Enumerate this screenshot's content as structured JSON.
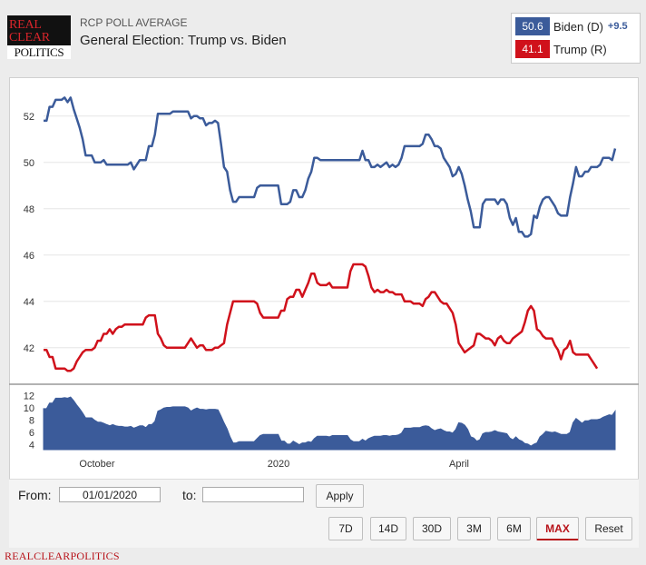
{
  "header": {
    "logo_lines": [
      "REAL",
      "CLEAR",
      "POLITICS"
    ],
    "subtitle": "RCP POLL AVERAGE",
    "title": "General Election: Trump vs. Biden"
  },
  "legend": [
    {
      "value": "50.6",
      "name": "Biden (D)",
      "spread": "+9.5",
      "color": "#3b5b9a"
    },
    {
      "value": "41.1",
      "name": "Trump (R)",
      "spread": "",
      "color": "#d0111b"
    }
  ],
  "chart_data": {
    "type": "line",
    "title": "General Election: Trump vs. Biden",
    "ylim": [
      40.5,
      53.6
    ],
    "yticks": [
      42,
      44,
      46,
      48,
      50,
      52
    ],
    "xticks": [
      "October",
      "2020",
      "April"
    ],
    "series": [
      {
        "name": "Biden (D)",
        "color": "#3b5b9a",
        "values": [
          51.8,
          51.8,
          52.4,
          52.4,
          52.7,
          52.7,
          52.7,
          52.8,
          52.6,
          52.8,
          52.3,
          51.9,
          51.5,
          51.0,
          50.3,
          50.3,
          50.3,
          50.0,
          50.0,
          50.0,
          50.1,
          49.9,
          49.9,
          49.9,
          49.9,
          49.9,
          49.9,
          49.9,
          49.9,
          50.0,
          49.7,
          49.9,
          50.1,
          50.1,
          50.1,
          50.7,
          50.7,
          51.2,
          52.1,
          52.1,
          52.1,
          52.1,
          52.1,
          52.2,
          52.2,
          52.2,
          52.2,
          52.2,
          52.2,
          51.9,
          52.0,
          52.0,
          51.9,
          51.9,
          51.6,
          51.7,
          51.7,
          51.8,
          51.7,
          50.8,
          49.8,
          49.6,
          48.8,
          48.3,
          48.3,
          48.5,
          48.5,
          48.5,
          48.5,
          48.5,
          48.5,
          48.9,
          49.0,
          49.0,
          49.0,
          49.0,
          49.0,
          49.0,
          49.0,
          48.2,
          48.2,
          48.2,
          48.3,
          48.8,
          48.8,
          48.5,
          48.5,
          48.8,
          49.3,
          49.6,
          50.2,
          50.2,
          50.1,
          50.1,
          50.1,
          50.1,
          50.1,
          50.1,
          50.1,
          50.1,
          50.1,
          50.1,
          50.1,
          50.1,
          50.1,
          50.1,
          50.5,
          50.1,
          50.1,
          49.8,
          49.8,
          49.9,
          49.8,
          49.9,
          50.0,
          49.8,
          49.9,
          49.8,
          49.9,
          50.2,
          50.7,
          50.7,
          50.7,
          50.7,
          50.7,
          50.7,
          50.8,
          51.2,
          51.2,
          51.0,
          50.7,
          50.7,
          50.6,
          50.2,
          50.0,
          49.8,
          49.4,
          49.5,
          49.8,
          49.5,
          49.0,
          48.4,
          47.9,
          47.2,
          47.2,
          47.2,
          48.2,
          48.4,
          48.4,
          48.4,
          48.4,
          48.2,
          48.4,
          48.4,
          48.2,
          47.6,
          47.3,
          47.6,
          47.0,
          47.0,
          46.8,
          46.8,
          46.9,
          47.7,
          47.6,
          48.1,
          48.4,
          48.5,
          48.5,
          48.3,
          48.1,
          47.8,
          47.7,
          47.7,
          47.7,
          48.5,
          49.1,
          49.8,
          49.4,
          49.4,
          49.6,
          49.6,
          49.8,
          49.8,
          49.8,
          49.9,
          50.2,
          50.2,
          50.2,
          50.1,
          50.6
        ]
      },
      {
        "name": "Trump (R)",
        "color": "#d0111b",
        "values": [
          41.9,
          41.9,
          41.6,
          41.6,
          41.1,
          41.1,
          41.1,
          41.1,
          41.0,
          41.0,
          41.1,
          41.4,
          41.6,
          41.8,
          41.9,
          41.9,
          41.9,
          42.0,
          42.3,
          42.3,
          42.6,
          42.6,
          42.8,
          42.6,
          42.8,
          42.9,
          42.9,
          43.0,
          43.0,
          43.0,
          43.0,
          43.0,
          43.0,
          43.0,
          43.3,
          43.4,
          43.4,
          43.4,
          42.6,
          42.4,
          42.1,
          42.0,
          42.0,
          42.0,
          42.0,
          42.0,
          42.0,
          42.0,
          42.2,
          42.4,
          42.2,
          42.0,
          42.1,
          42.1,
          41.9,
          41.9,
          41.9,
          42.0,
          42.0,
          42.1,
          42.2,
          43.0,
          43.5,
          44.0,
          44.0,
          44.0,
          44.0,
          44.0,
          44.0,
          44.0,
          44.0,
          43.9,
          43.5,
          43.3,
          43.3,
          43.3,
          43.3,
          43.3,
          43.3,
          43.6,
          43.6,
          44.1,
          44.2,
          44.2,
          44.5,
          44.5,
          44.2,
          44.5,
          44.8,
          45.2,
          45.2,
          44.8,
          44.7,
          44.7,
          44.7,
          44.8,
          44.6,
          44.6,
          44.6,
          44.6,
          44.6,
          44.6,
          45.3,
          45.6,
          45.6,
          45.6,
          45.6,
          45.5,
          45.1,
          44.6,
          44.4,
          44.5,
          44.4,
          44.4,
          44.5,
          44.4,
          44.4,
          44.3,
          44.3,
          44.3,
          44.0,
          44.0,
          44.0,
          43.9,
          43.9,
          43.9,
          43.8,
          44.1,
          44.2,
          44.4,
          44.4,
          44.2,
          44.0,
          43.9,
          43.9,
          43.7,
          43.5,
          43.0,
          42.2,
          42.0,
          41.8,
          41.9,
          42.0,
          42.1,
          42.6,
          42.6,
          42.5,
          42.4,
          42.4,
          42.3,
          42.1,
          42.4,
          42.5,
          42.3,
          42.2,
          42.2,
          42.4,
          42.5,
          42.6,
          42.7,
          43.1,
          43.6,
          43.8,
          43.6,
          42.8,
          42.7,
          42.5,
          42.4,
          42.4,
          42.4,
          42.1,
          41.9,
          41.5,
          41.9,
          42.0,
          42.3,
          41.8,
          41.7,
          41.7,
          41.7,
          41.7,
          41.7,
          41.5,
          41.3,
          41.1
        ]
      }
    ],
    "spread": {
      "name": "Spread",
      "color": "#3b5b9a",
      "ylim": [
        3.2,
        13.0
      ],
      "yticks": [
        4,
        6,
        8,
        10,
        12
      ],
      "values": [
        9.9,
        9.9,
        10.8,
        10.8,
        11.6,
        11.6,
        11.6,
        11.7,
        11.6,
        11.8,
        11.2,
        10.5,
        9.9,
        9.2,
        8.4,
        8.4,
        8.4,
        8.0,
        7.7,
        7.7,
        7.5,
        7.3,
        7.1,
        7.3,
        7.1,
        7.0,
        7.0,
        6.9,
        6.9,
        7.0,
        6.7,
        6.9,
        7.1,
        7.1,
        6.8,
        7.3,
        7.3,
        7.8,
        9.5,
        9.7,
        10.0,
        10.1,
        10.1,
        10.2,
        10.2,
        10.2,
        10.2,
        10.2,
        10.0,
        9.5,
        9.8,
        10.0,
        9.8,
        9.8,
        9.7,
        9.8,
        9.8,
        9.8,
        9.7,
        8.7,
        7.6,
        6.6,
        5.3,
        4.3,
        4.3,
        4.5,
        4.5,
        4.5,
        4.5,
        4.5,
        4.5,
        5.0,
        5.5,
        5.7,
        5.7,
        5.7,
        5.7,
        5.7,
        5.7,
        4.6,
        4.6,
        4.1,
        4.1,
        4.6,
        4.3,
        4.0,
        4.3,
        4.3,
        4.5,
        4.4,
        5.0,
        5.4,
        5.4,
        5.4,
        5.4,
        5.3,
        5.5,
        5.5,
        5.5,
        5.5,
        5.5,
        5.5,
        4.8,
        4.5,
        4.5,
        4.5,
        4.9,
        4.6,
        5.0,
        5.2,
        5.4,
        5.4,
        5.4,
        5.5,
        5.5,
        5.4,
        5.5,
        5.5,
        5.6,
        5.9,
        6.7,
        6.7,
        6.7,
        6.8,
        6.8,
        6.8,
        7.0,
        7.1,
        7.0,
        6.6,
        6.3,
        6.5,
        6.6,
        6.3,
        6.1,
        6.1,
        5.9,
        6.5,
        7.6,
        7.5,
        7.2,
        6.5,
        5.3,
        5.1,
        4.6,
        4.8,
        5.8,
        6.0,
        6.0,
        6.1,
        6.3,
        6.1,
        6.0,
        5.9,
        5.8,
        5.1,
        4.8,
        5.3,
        4.8,
        4.6,
        4.2,
        4.1,
        3.8,
        4.1,
        4.3,
        5.3,
        5.7,
        6.2,
        6.1,
        6.0,
        6.1,
        5.9,
        5.7,
        5.7,
        5.7,
        6.0,
        7.6,
        8.3,
        7.9,
        7.5,
        7.9,
        7.9,
        8.1,
        8.1,
        8.1,
        8.2,
        8.5,
        8.7,
        8.9,
        8.8,
        9.5
      ]
    }
  },
  "controls": {
    "from_label": "From:",
    "from_value": "01/01/2020",
    "to_label": "to:",
    "to_value": "",
    "apply_label": "Apply",
    "ranges": [
      {
        "label": "7D",
        "active": false
      },
      {
        "label": "14D",
        "active": false
      },
      {
        "label": "30D",
        "active": false
      },
      {
        "label": "3M",
        "active": false
      },
      {
        "label": "6M",
        "active": false
      },
      {
        "label": "MAX",
        "active": true
      },
      {
        "label": "Reset",
        "active": false
      }
    ]
  },
  "footer": {
    "brand": "REALCLEARPOLITICS"
  }
}
